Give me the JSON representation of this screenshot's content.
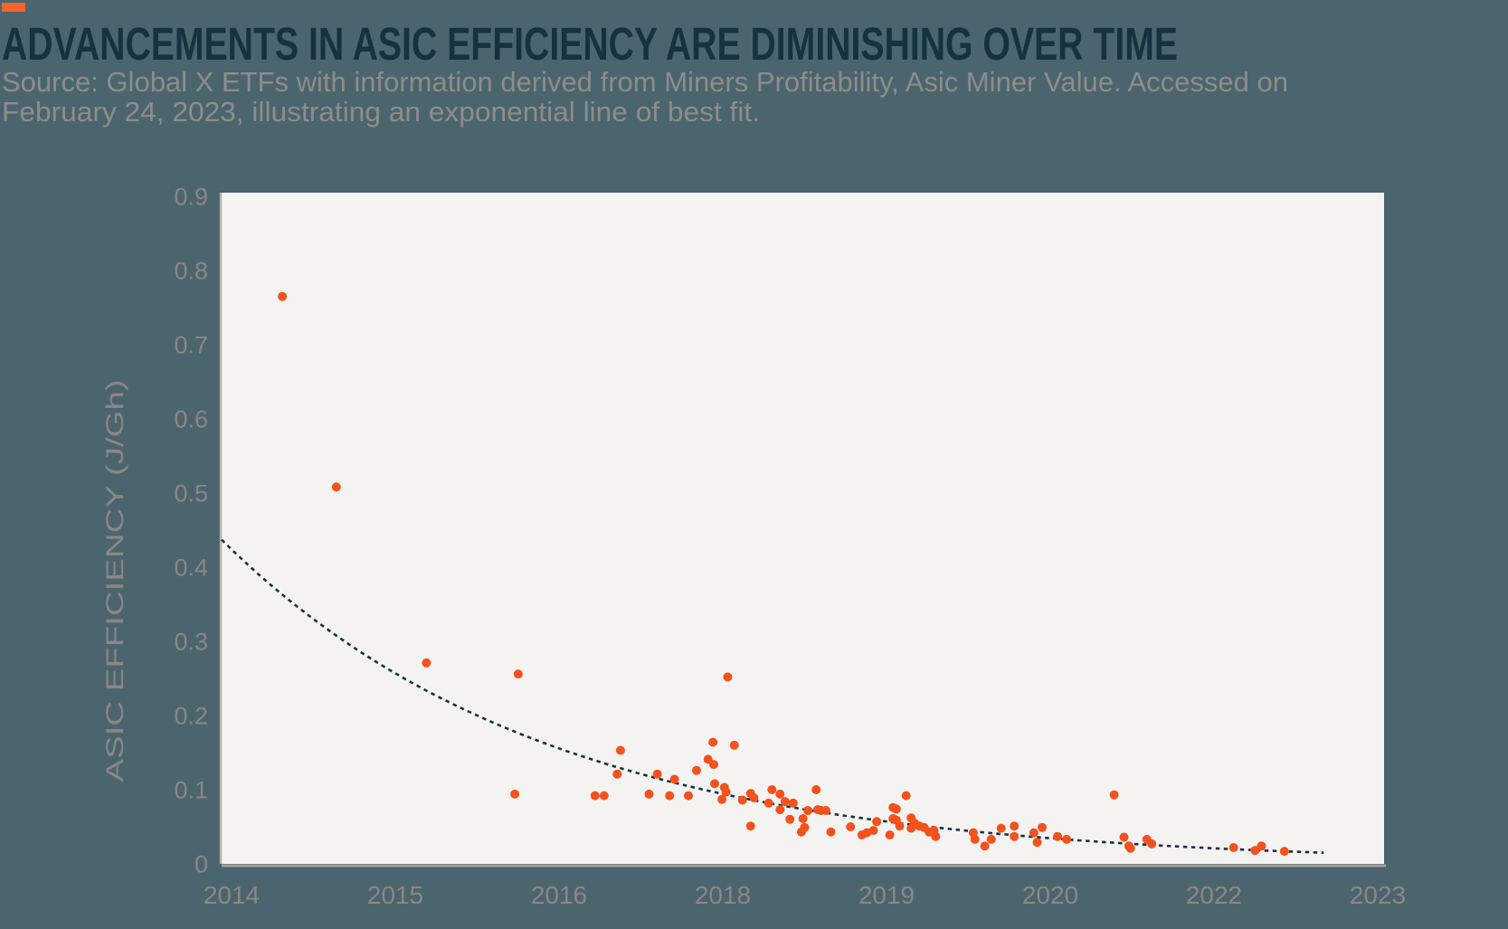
{
  "header": {
    "accent_color": "#f2662b",
    "title": "ADVANCEMENTS IN ASIC EFFICIENCY ARE DIMINISHING OVER TIME",
    "source_line1": "Source: Global X ETFs with information derived from Miners Profitability, Asic Miner Value. Accessed on",
    "source_line2": "February 24, 2023, illustrating an exponential line of best fit."
  },
  "colors": {
    "background": "#4b656e",
    "title_text": "#14333e",
    "source_text": "#8f8c89",
    "tick_label": "#8d8683",
    "plot_background": "#f4f3f2",
    "y_axis_line": "#b7b0ab",
    "x_axis_line": "#a7a09b",
    "point": "#f4511c",
    "trendline": "#18323b"
  },
  "chart_data": {
    "type": "scatter",
    "title": "ADVANCEMENTS IN ASIC EFFICIENCY ARE DIMINISHING OVER TIME",
    "xlabel": "",
    "ylabel": "ASIC EFFICIENCY (J/Gh)",
    "legend": "none",
    "grid": false,
    "ylim": [
      0,
      0.9
    ],
    "y_ticks": [
      0,
      0.1,
      0.2,
      0.3,
      0.4,
      0.5,
      0.6,
      0.7,
      0.8,
      0.9
    ],
    "y_tick_labels": [
      "0",
      "0.1",
      "0.2",
      "0.3",
      "0.4",
      "0.5",
      "0.6",
      "0.7",
      "0.8",
      "0.9"
    ],
    "x_tick_years": [
      2014,
      2015,
      2016,
      2018,
      2019,
      2020,
      2022,
      2023
    ],
    "x_tick_labels": [
      "2014",
      "2015",
      "2016",
      "2018",
      "2019",
      "2020",
      "2022",
      "2023"
    ],
    "points": [
      [
        2014.31,
        0.765
      ],
      [
        2014.64,
        0.508
      ],
      [
        2015.19,
        0.271
      ],
      [
        2015.73,
        0.094
      ],
      [
        2015.75,
        0.256
      ],
      [
        2016.44,
        0.092
      ],
      [
        2016.55,
        0.092
      ],
      [
        2016.71,
        0.121
      ],
      [
        2016.75,
        0.153
      ],
      [
        2017.1,
        0.094
      ],
      [
        2017.2,
        0.121
      ],
      [
        2017.35,
        0.092
      ],
      [
        2017.41,
        0.114
      ],
      [
        2017.58,
        0.092
      ],
      [
        2017.68,
        0.126
      ],
      [
        2017.82,
        0.141
      ],
      [
        2017.88,
        0.164
      ],
      [
        2017.89,
        0.134
      ],
      [
        2017.9,
        0.108
      ],
      [
        2017.99,
        0.087
      ],
      [
        2018.01,
        0.103
      ],
      [
        2018.02,
        0.097
      ],
      [
        2018.03,
        0.252
      ],
      [
        2018.07,
        0.16
      ],
      [
        2018.12,
        0.086
      ],
      [
        2018.17,
        0.095
      ],
      [
        2018.17,
        0.051
      ],
      [
        2018.19,
        0.089
      ],
      [
        2018.28,
        0.082
      ],
      [
        2018.3,
        0.1
      ],
      [
        2018.35,
        0.094
      ],
      [
        2018.35,
        0.073
      ],
      [
        2018.38,
        0.084
      ],
      [
        2018.41,
        0.06
      ],
      [
        2018.43,
        0.082
      ],
      [
        2018.48,
        0.043
      ],
      [
        2018.49,
        0.061
      ],
      [
        2018.5,
        0.049
      ],
      [
        2018.52,
        0.072
      ],
      [
        2018.57,
        0.1
      ],
      [
        2018.58,
        0.073
      ],
      [
        2018.6,
        0.072
      ],
      [
        2018.63,
        0.072
      ],
      [
        2018.66,
        0.043
      ],
      [
        2018.78,
        0.05
      ],
      [
        2018.85,
        0.039
      ],
      [
        2018.88,
        0.042
      ],
      [
        2018.92,
        0.045
      ],
      [
        2018.94,
        0.057
      ],
      [
        2019.02,
        0.039
      ],
      [
        2019.04,
        0.076
      ],
      [
        2019.04,
        0.061
      ],
      [
        2019.06,
        0.074
      ],
      [
        2019.06,
        0.059
      ],
      [
        2019.08,
        0.051
      ],
      [
        2019.12,
        0.092
      ],
      [
        2019.15,
        0.062
      ],
      [
        2019.15,
        0.048
      ],
      [
        2019.17,
        0.055
      ],
      [
        2019.2,
        0.051
      ],
      [
        2019.23,
        0.049
      ],
      [
        2019.26,
        0.043
      ],
      [
        2019.29,
        0.045
      ],
      [
        2019.3,
        0.037
      ],
      [
        2019.53,
        0.042
      ],
      [
        2019.54,
        0.033
      ],
      [
        2019.6,
        0.024
      ],
      [
        2019.64,
        0.033
      ],
      [
        2019.7,
        0.048
      ],
      [
        2019.78,
        0.051
      ],
      [
        2019.78,
        0.037
      ],
      [
        2019.9,
        0.042
      ],
      [
        2019.92,
        0.029
      ],
      [
        2019.95,
        0.049
      ],
      [
        2020.09,
        0.037
      ],
      [
        2020.2,
        0.033
      ],
      [
        2020.78,
        0.093
      ],
      [
        2020.9,
        0.036
      ],
      [
        2020.96,
        0.024
      ],
      [
        2020.98,
        0.021
      ],
      [
        2021.18,
        0.033
      ],
      [
        2021.24,
        0.027
      ],
      [
        2022.12,
        0.022
      ],
      [
        2022.25,
        0.018
      ],
      [
        2022.29,
        0.024
      ],
      [
        2022.43,
        0.017
      ]
    ],
    "trendline": {
      "type": "exponential",
      "style": "dashed",
      "start_value": 0.437,
      "end_value": 0.015,
      "end_year": 2022.67
    }
  }
}
